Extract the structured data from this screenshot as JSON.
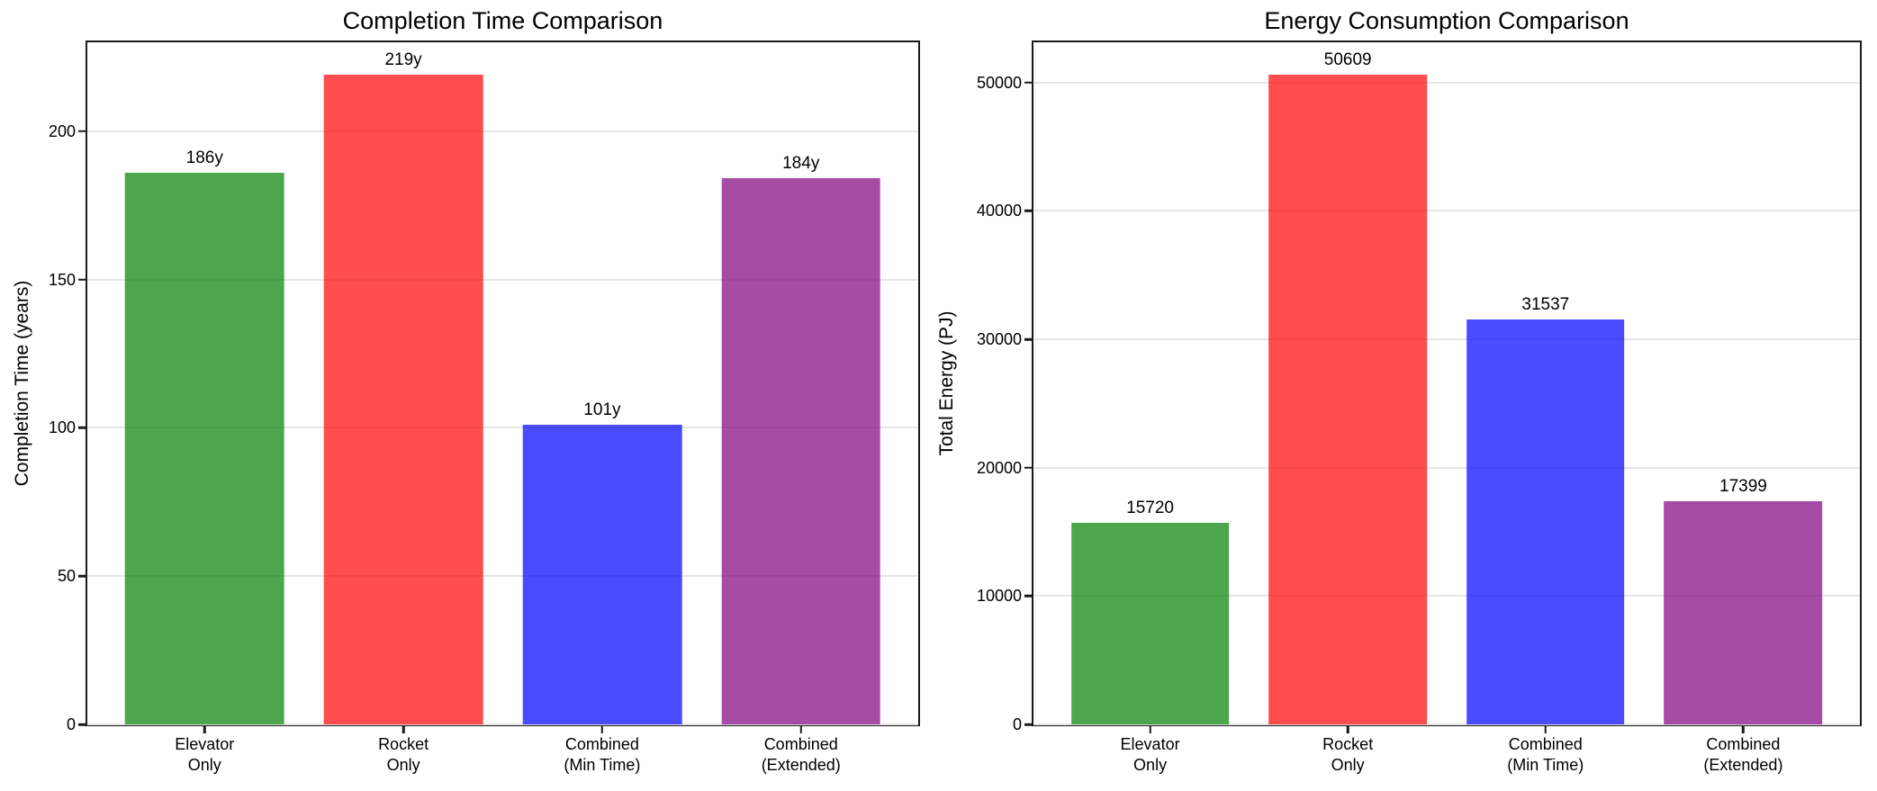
{
  "figure": {
    "background": "#ffffff"
  },
  "colors": {
    "bar_fill_base": [
      "#008000",
      "#ff0000",
      "#0000ff",
      "#800080"
    ],
    "bar_alpha": 0.7,
    "grid": "#e6e6e6",
    "spine": "#1a1a1a",
    "tick": "#1a1a1a",
    "text": "#000000"
  },
  "chart_data": [
    {
      "type": "bar",
      "title": "Completion Time Comparison",
      "xlabel": "",
      "ylabel": "Completion Time (years)",
      "categories": [
        [
          "Elevator",
          "Only"
        ],
        [
          "Rocket",
          "Only"
        ],
        [
          "Combined",
          "(Min Time)"
        ],
        [
          "Combined",
          "(Extended)"
        ]
      ],
      "values": [
        186,
        219,
        101,
        184
      ],
      "bar_labels": [
        "186y",
        "219y",
        "101y",
        "184y"
      ],
      "yticks": [
        0,
        50,
        100,
        150,
        200
      ],
      "ylim": [
        0,
        229.95
      ],
      "bar_width_fraction": 0.8,
      "grid": "horizontal",
      "legend": "none"
    },
    {
      "type": "bar",
      "title": "Energy Consumption Comparison",
      "xlabel": "",
      "ylabel": "Total Energy (PJ)",
      "categories": [
        [
          "Elevator",
          "Only"
        ],
        [
          "Rocket",
          "Only"
        ],
        [
          "Combined",
          "(Min Time)"
        ],
        [
          "Combined",
          "(Extended)"
        ]
      ],
      "values": [
        15720,
        50609,
        31537,
        17399
      ],
      "bar_labels": [
        "15720",
        "50609",
        "31537",
        "17399"
      ],
      "yticks": [
        0,
        10000,
        20000,
        30000,
        40000,
        50000
      ],
      "ylim": [
        0,
        53139
      ],
      "bar_width_fraction": 0.8,
      "grid": "horizontal",
      "legend": "none"
    }
  ]
}
